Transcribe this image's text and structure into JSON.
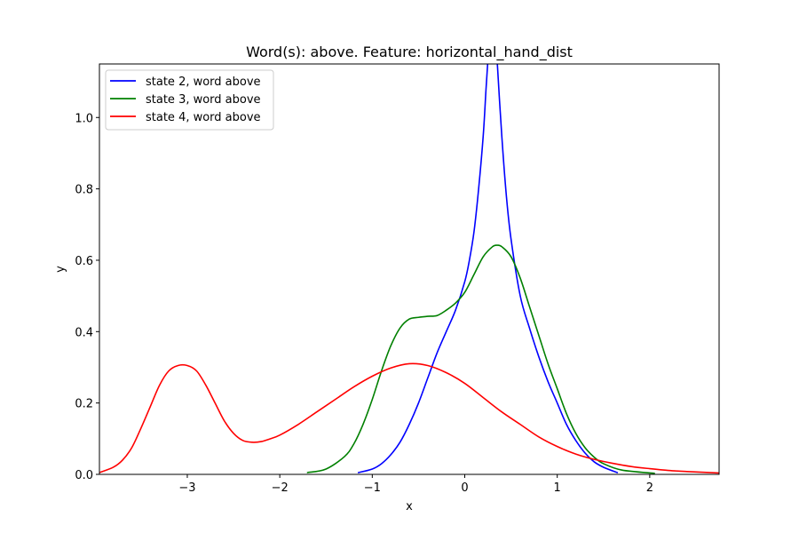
{
  "chart_data": {
    "type": "line",
    "title": "Word(s): above. Feature: horizontal_hand_dist",
    "xlabel": "x",
    "ylabel": "y",
    "xlim": [
      -3.95,
      2.75
    ],
    "ylim": [
      0,
      1.15
    ],
    "xticks": [
      -3,
      -2,
      -1,
      0,
      1,
      2
    ],
    "xtick_labels": [
      "−3",
      "−2",
      "−1",
      "0",
      "1",
      "2"
    ],
    "yticks": [
      0.0,
      0.2,
      0.4,
      0.6,
      0.8,
      1.0
    ],
    "ytick_labels": [
      "0.0",
      "0.2",
      "0.4",
      "0.6",
      "0.8",
      "1.0"
    ],
    "grid": false,
    "legend_position": "top-left",
    "series": [
      {
        "name": "state 2, word above",
        "color": "#0000ff",
        "x": [
          -1.15,
          -1.0,
          -0.9,
          -0.8,
          -0.7,
          -0.6,
          -0.5,
          -0.4,
          -0.3,
          -0.2,
          -0.1,
          0.0,
          0.05,
          0.1,
          0.15,
          0.2,
          0.23,
          0.25,
          0.28,
          0.32,
          0.35,
          0.4,
          0.45,
          0.5,
          0.6,
          0.7,
          0.8,
          0.9,
          1.0,
          1.1,
          1.2,
          1.3,
          1.4,
          1.5,
          1.65
        ],
        "y": [
          0.005,
          0.015,
          0.03,
          0.055,
          0.09,
          0.14,
          0.2,
          0.27,
          0.34,
          0.4,
          0.46,
          0.54,
          0.6,
          0.68,
          0.8,
          0.95,
          1.08,
          1.16,
          1.3,
          1.3,
          1.16,
          0.95,
          0.78,
          0.66,
          0.5,
          0.41,
          0.33,
          0.26,
          0.2,
          0.14,
          0.095,
          0.06,
          0.035,
          0.02,
          0.005
        ]
      },
      {
        "name": "state 3, word above",
        "color": "#008000",
        "x": [
          -1.7,
          -1.5,
          -1.3,
          -1.2,
          -1.1,
          -1.0,
          -0.9,
          -0.8,
          -0.7,
          -0.6,
          -0.5,
          -0.4,
          -0.3,
          -0.2,
          -0.1,
          0.0,
          0.1,
          0.2,
          0.3,
          0.35,
          0.4,
          0.5,
          0.6,
          0.7,
          0.8,
          0.9,
          1.0,
          1.1,
          1.2,
          1.3,
          1.4,
          1.5,
          1.7,
          2.05
        ],
        "y": [
          0.005,
          0.015,
          0.05,
          0.085,
          0.14,
          0.21,
          0.29,
          0.36,
          0.41,
          0.435,
          0.44,
          0.443,
          0.445,
          0.46,
          0.48,
          0.51,
          0.56,
          0.61,
          0.638,
          0.642,
          0.638,
          0.61,
          0.55,
          0.47,
          0.39,
          0.31,
          0.24,
          0.17,
          0.115,
          0.075,
          0.048,
          0.03,
          0.012,
          0.003
        ]
      },
      {
        "name": "state 4, word above",
        "color": "#ff0000",
        "x": [
          -3.95,
          -3.8,
          -3.7,
          -3.6,
          -3.5,
          -3.4,
          -3.3,
          -3.2,
          -3.1,
          -3.0,
          -2.9,
          -2.8,
          -2.7,
          -2.6,
          -2.5,
          -2.4,
          -2.3,
          -2.2,
          -2.1,
          -2.0,
          -1.8,
          -1.6,
          -1.4,
          -1.2,
          -1.0,
          -0.8,
          -0.6,
          -0.4,
          -0.2,
          0.0,
          0.2,
          0.4,
          0.6,
          0.8,
          1.0,
          1.2,
          1.4,
          1.6,
          1.8,
          2.0,
          2.2,
          2.4,
          2.75
        ],
        "y": [
          0.005,
          0.02,
          0.04,
          0.075,
          0.13,
          0.19,
          0.25,
          0.29,
          0.305,
          0.305,
          0.29,
          0.25,
          0.2,
          0.15,
          0.115,
          0.095,
          0.09,
          0.092,
          0.1,
          0.11,
          0.14,
          0.175,
          0.21,
          0.245,
          0.275,
          0.298,
          0.31,
          0.305,
          0.285,
          0.255,
          0.215,
          0.175,
          0.14,
          0.105,
          0.078,
          0.057,
          0.042,
          0.031,
          0.022,
          0.016,
          0.011,
          0.008,
          0.004
        ]
      }
    ]
  }
}
